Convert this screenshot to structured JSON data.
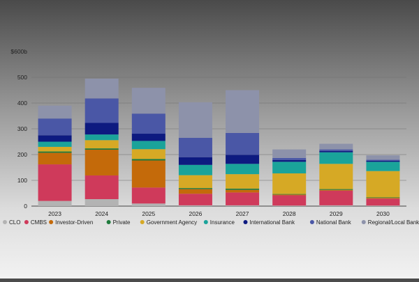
{
  "chart_data": {
    "type": "bar",
    "stacked": true,
    "categories": [
      "2023",
      "2024",
      "2025",
      "2026",
      "2027",
      "2028",
      "2029",
      "2030"
    ],
    "ylim": [
      0,
      600
    ],
    "y_ticks": [
      {
        "value": 0,
        "label": "0"
      },
      {
        "value": 100,
        "label": "100"
      },
      {
        "value": 200,
        "label": "200"
      },
      {
        "value": 300,
        "label": "300"
      },
      {
        "value": 400,
        "label": "400"
      },
      {
        "value": 500,
        "label": "500"
      },
      {
        "value": 600,
        "label": "$600b"
      }
    ],
    "grid": true,
    "legend_position": "bottom",
    "series": [
      {
        "name": "CLO",
        "color": "#b3b3b3",
        "values": [
          20,
          27,
          10,
          3,
          3,
          2,
          3,
          2
        ]
      },
      {
        "name": "CMBS",
        "color": "#cf3a5b",
        "values": [
          142,
          92,
          62,
          45,
          50,
          40,
          57,
          27
        ]
      },
      {
        "name": "Investor-Driven",
        "color": "#c46a0a",
        "values": [
          45,
          100,
          105,
          18,
          10,
          3,
          3,
          3
        ]
      },
      {
        "name": "Private",
        "color": "#1e7a3c",
        "values": [
          5,
          5,
          6,
          4,
          5,
          2,
          3,
          2
        ]
      },
      {
        "name": "Government Agency",
        "color": "#d6a925",
        "values": [
          18,
          32,
          38,
          50,
          56,
          80,
          98,
          102
        ]
      },
      {
        "name": "Insurance",
        "color": "#1aa39a",
        "values": [
          20,
          22,
          32,
          40,
          40,
          45,
          45,
          36
        ]
      },
      {
        "name": "International Bank",
        "color": "#0d1a80",
        "values": [
          25,
          45,
          28,
          30,
          35,
          7,
          5,
          4
        ]
      },
      {
        "name": "National Bank",
        "color": "#4a57a6",
        "values": [
          65,
          95,
          78,
          75,
          85,
          8,
          6,
          4
        ]
      },
      {
        "name": "Regional/Local Bank",
        "color": "#8d92aa",
        "values": [
          50,
          77,
          100,
          138,
          166,
          33,
          22,
          17
        ]
      }
    ]
  }
}
